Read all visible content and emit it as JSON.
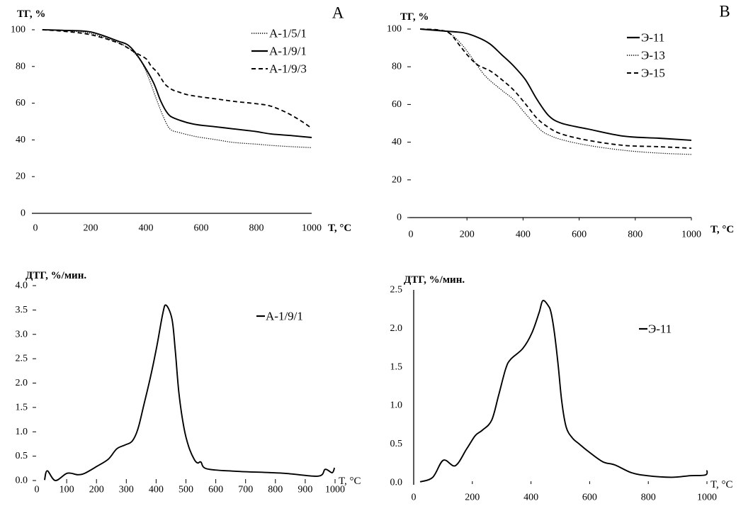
{
  "chart_data": [
    {
      "type": "line",
      "panel_label": "A",
      "title": "",
      "ylabel": "ТГ, %",
      "xlabel": "T, °C",
      "xlim": [
        0,
        1000
      ],
      "ylim": [
        0,
        100
      ],
      "grid": false,
      "legend_position": "top-right",
      "xticks": [
        0,
        200,
        400,
        600,
        800,
        1000
      ],
      "xtick_labels": [
        "0",
        "200",
        "400",
        "600",
        "800",
        "1000"
      ],
      "yticks": [
        0,
        20,
        40,
        60,
        80,
        100
      ],
      "ytick_labels": [
        "0",
        "20",
        "40",
        "60",
        "80",
        "100"
      ],
      "series": [
        {
          "name": "A-1/5/1",
          "line_style": "dotted",
          "x": [
            25,
            100,
            200,
            300,
            350,
            385,
            410,
            436,
            462,
            487,
            521,
            585,
            650,
            718,
            800,
            854,
            930,
            1000
          ],
          "y": [
            100,
            99.6,
            98,
            93,
            88.5,
            82,
            73.7,
            63,
            53,
            46,
            44,
            41.7,
            40.2,
            38.6,
            37.7,
            37,
            36.3,
            35.8
          ]
        },
        {
          "name": "A-1/9/1",
          "line_style": "solid",
          "x": [
            25,
            100,
            200,
            300,
            333,
            359,
            392,
            428,
            454,
            479,
            505,
            572,
            650,
            718,
            800,
            854,
            930,
            1000
          ],
          "y": [
            100,
            99.7,
            98.8,
            93.8,
            91.9,
            88,
            80.7,
            71,
            61,
            54.4,
            51.7,
            48.6,
            47.2,
            46,
            44.5,
            43.2,
            42.3,
            41.3
          ]
        },
        {
          "name": "A-1/9/3",
          "line_style": "dashed",
          "x": [
            25,
            100,
            200,
            300,
            350,
            376,
            402,
            419,
            440,
            457,
            470,
            496,
            521,
            547,
            585,
            650,
            718,
            800,
            854,
            915,
            967,
            1000
          ],
          "y": [
            100,
            99.2,
            97.3,
            92.8,
            88.6,
            86.4,
            84,
            80.2,
            77,
            73.1,
            70.2,
            67.3,
            66,
            64.7,
            63.7,
            62.4,
            61,
            59.7,
            58.3,
            54.4,
            49.8,
            46.3
          ]
        }
      ]
    },
    {
      "type": "line",
      "panel_label": "B",
      "title": "",
      "ylabel": "ТГ, %",
      "xlabel": "T, °C",
      "xlim": [
        0,
        1000
      ],
      "ylim": [
        0,
        100
      ],
      "grid": false,
      "legend_position": "top-right",
      "xticks": [
        0,
        200,
        400,
        600,
        800,
        1000
      ],
      "xtick_labels": [
        "0",
        "200",
        "400",
        "600",
        "800",
        "1000"
      ],
      "yticks": [
        0,
        20,
        40,
        60,
        80,
        100
      ],
      "ytick_labels": [
        "0",
        "20",
        "40",
        "60",
        "80",
        "100"
      ],
      "series": [
        {
          "name": "Э-11",
          "line_style": "solid",
          "x": [
            33,
            114,
            189,
            240,
            283,
            323,
            366,
            409,
            450,
            492,
            538,
            631,
            758,
            884,
            1000
          ],
          "y": [
            100,
            99,
            98,
            95.5,
            92,
            86.5,
            80.5,
            73,
            62.6,
            54,
            50,
            47,
            43.2,
            42.1,
            41
          ]
        },
        {
          "name": "Э-13",
          "line_style": "dotted",
          "x": [
            33,
            100,
            139,
            182,
            215,
            265,
            323,
            366,
            409,
            460,
            492,
            538,
            631,
            758,
            884,
            1000
          ],
          "y": [
            100,
            99.5,
            97.7,
            91.7,
            85.3,
            75.2,
            67.7,
            62.6,
            55,
            46.8,
            43.8,
            41.3,
            38.3,
            35.7,
            34.2,
            33.5
          ]
        },
        {
          "name": "Э-15",
          "line_style": "dashed",
          "x": [
            33,
            100,
            139,
            172,
            207,
            240,
            283,
            323,
            366,
            409,
            450,
            492,
            538,
            631,
            758,
            884,
            1000
          ],
          "y": [
            100,
            99.5,
            97.7,
            91.7,
            85.3,
            80.8,
            77.8,
            73.3,
            67.7,
            60.2,
            52.6,
            47.7,
            44.3,
            41,
            38.3,
            37.6,
            36.8
          ]
        }
      ]
    },
    {
      "type": "line",
      "title": "",
      "ylabel": "ДТГ, %/мин.",
      "xlabel": "T, °C",
      "xlim": [
        0,
        1000
      ],
      "ylim": [
        0,
        4.0
      ],
      "grid": false,
      "legend_position": "top-right",
      "xticks": [
        0,
        100,
        200,
        300,
        400,
        500,
        600,
        700,
        800,
        900,
        1000
      ],
      "xtick_labels": [
        "0",
        "100",
        "200",
        "300",
        "400",
        "500",
        "600",
        "700",
        "800",
        "900",
        "1000"
      ],
      "yticks": [
        0,
        0.5,
        1.0,
        1.5,
        2.0,
        2.5,
        3.0,
        3.5,
        4.0
      ],
      "ytick_labels": [
        "0.0",
        "0.5",
        "1.0",
        "1.5",
        "2.0",
        "2.5",
        "3.0",
        "3.5",
        "4.0"
      ],
      "series": [
        {
          "name": "A-1/9/1",
          "line_style": "solid",
          "x": [
            26,
            35,
            62,
            102,
            137,
            161,
            201,
            240,
            268,
            296,
            320,
            339,
            358,
            382,
            403,
            422,
            433,
            453,
            464,
            476,
            493,
            509,
            528,
            540,
            550,
            570,
            667,
            825,
            943,
            967,
            990,
            998
          ],
          "y": [
            0.01,
            0.2,
            0.0,
            0.15,
            0.12,
            0.15,
            0.29,
            0.44,
            0.65,
            0.73,
            0.81,
            1.06,
            1.53,
            2.15,
            2.78,
            3.42,
            3.6,
            3.32,
            2.69,
            1.82,
            1.09,
            0.7,
            0.43,
            0.36,
            0.38,
            0.24,
            0.19,
            0.15,
            0.09,
            0.23,
            0.16,
            0.26
          ]
        }
      ]
    },
    {
      "type": "line",
      "title": "",
      "ylabel": "ДТГ, %/мин.",
      "xlabel": "T, °C",
      "xlim": [
        0,
        1000
      ],
      "ylim": [
        0,
        2.5
      ],
      "grid": false,
      "legend_position": "top-right",
      "xticks": [
        0,
        200,
        400,
        600,
        800,
        1000
      ],
      "xtick_labels": [
        "0",
        "200",
        "400",
        "600",
        "800",
        "1000"
      ],
      "yticks": [
        0,
        0.5,
        1.0,
        1.5,
        2.0,
        2.5
      ],
      "ytick_labels": [
        "0.0",
        "0.5",
        "1.0",
        "1.5",
        "2.0",
        "2.5"
      ],
      "series": [
        {
          "name": "Э-11",
          "line_style": "solid",
          "x": [
            22,
            65,
            101,
            142,
            181,
            210,
            234,
            266,
            290,
            314,
            331,
            372,
            403,
            428,
            440,
            458,
            468,
            480,
            493,
            505,
            520,
            541,
            565,
            597,
            645,
            686,
            742,
            797,
            879,
            942,
            995,
            1000
          ],
          "y": [
            0.01,
            0.07,
            0.29,
            0.22,
            0.44,
            0.61,
            0.68,
            0.81,
            1.14,
            1.48,
            1.6,
            1.74,
            1.94,
            2.21,
            2.36,
            2.3,
            2.21,
            1.94,
            1.51,
            1.05,
            0.72,
            0.58,
            0.5,
            0.4,
            0.27,
            0.23,
            0.13,
            0.09,
            0.07,
            0.09,
            0.1,
            0.16
          ]
        }
      ]
    }
  ]
}
